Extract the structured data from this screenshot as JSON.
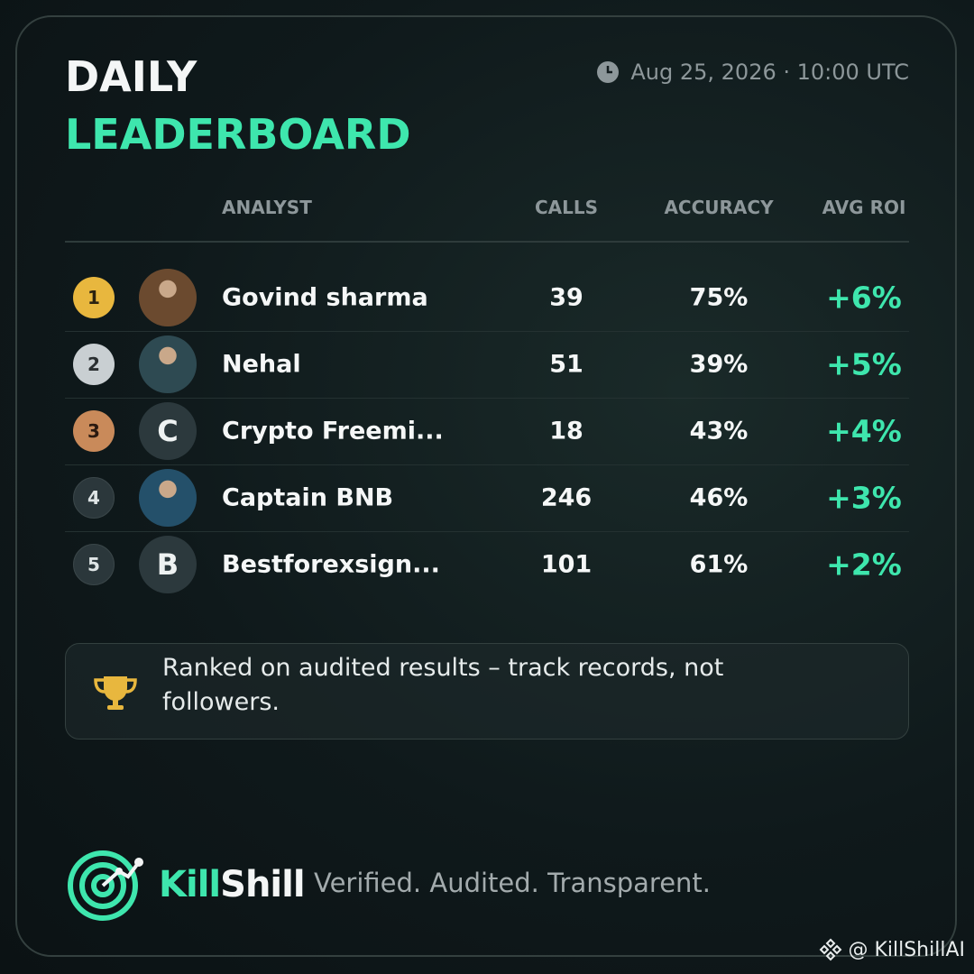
{
  "header": {
    "title_line1": "DAILY",
    "title_line2": "LEADERBOARD",
    "timestamp": "Aug 25, 2026 · 10:00 UTC"
  },
  "table": {
    "columns": [
      "ANALYST",
      "CALLS",
      "ACCURACY",
      "AVG ROI"
    ],
    "rows": [
      {
        "rank": "1",
        "name": "Govind sharma",
        "calls": "39",
        "accuracy": "75%",
        "roi": "+6%"
      },
      {
        "rank": "2",
        "name": "Nehal",
        "calls": "51",
        "accuracy": "39%",
        "roi": "+5%"
      },
      {
        "rank": "3",
        "avatar": "C",
        "name": "Crypto Freemi...",
        "calls": "18",
        "accuracy": "43%",
        "roi": "+4%"
      },
      {
        "rank": "4",
        "name": "Captain BNB",
        "calls": "246",
        "accuracy": "46%",
        "roi": "+3%"
      },
      {
        "rank": "5",
        "avatar": "B",
        "name": "Bestforexsign...",
        "calls": "101",
        "accuracy": "61%",
        "roi": "+2%"
      }
    ]
  },
  "note": "Ranked on audited results – track records, not followers.",
  "footer": {
    "brand_part1": "Kill",
    "brand_part2": "Shill",
    "tagline": "Verified. Audited. Transparent.",
    "watermark": "@ KillShillAI"
  }
}
